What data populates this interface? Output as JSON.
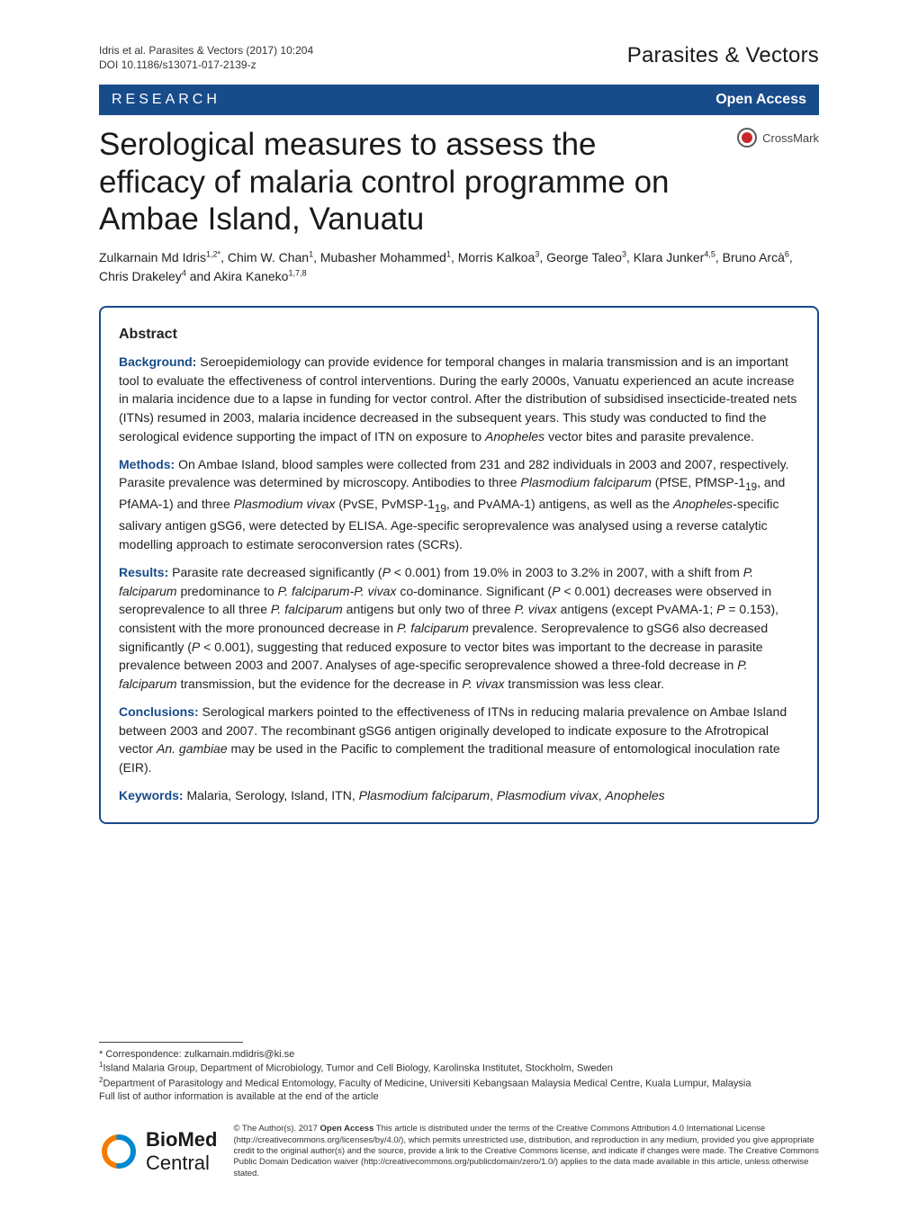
{
  "meta": {
    "citation": "Idris et al. Parasites & Vectors (2017) 10:204",
    "doi": "DOI 10.1186/s13071-017-2139-z",
    "journal": "Parasites & Vectors"
  },
  "ribbon": {
    "left": "RESEARCH",
    "right": "Open Access"
  },
  "title": "Serological measures to assess the efficacy of malaria control programme on Ambae Island, Vanuatu",
  "crossmark_label": "CrossMark",
  "authors_html": "Zulkarnain Md Idris<sup>1,2*</sup>, Chim W. Chan<sup>1</sup>, Mubasher Mohammed<sup>1</sup>, Morris Kalkoa<sup>3</sup>, George Taleo<sup>3</sup>, Klara Junker<sup>4,5</sup>, Bruno Arcà<sup>6</sup>, Chris Drakeley<sup>4</sup> and Akira Kaneko<sup>1,7,8</sup>",
  "abstract": {
    "heading": "Abstract",
    "labels": {
      "background": "Background:",
      "methods": "Methods:",
      "results": "Results:",
      "conclusions": "Conclusions:",
      "keywords": "Keywords:"
    },
    "background": " Seroepidemiology can provide evidence for temporal changes in malaria transmission and is an important tool to evaluate the effectiveness of control interventions. During the early 2000s, Vanuatu experienced an acute increase in malaria incidence due to a lapse in funding for vector control. After the distribution of subsidised insecticide-treated nets (ITNs) resumed in 2003, malaria incidence decreased in the subsequent years. This study was conducted to find the serological evidence supporting the impact of ITN on exposure to ",
    "background_tail_italic": "Anopheles",
    "background_tail": " vector bites and parasite prevalence.",
    "methods_html": " On Ambae Island, blood samples were collected from 231 and 282 individuals in 2003 and 2007, respectively. Parasite prevalence was determined by microscopy. Antibodies to three <span class=\"italic\">Plasmodium falciparum</span> (PfSE, PfMSP-1<sub>19</sub>, and PfAMA-1) and three <span class=\"italic\">Plasmodium vivax</span> (PvSE, PvMSP-1<sub>19</sub>, and PvAMA-1) antigens, as well as the <span class=\"italic\">Anopheles</span>-specific salivary antigen gSG6, were detected by ELISA. Age-specific seroprevalence was analysed using a reverse catalytic modelling approach to estimate seroconversion rates (SCRs).",
    "results_html": " Parasite rate decreased significantly (<span class=\"italic\">P</span> < 0.001) from 19.0% in 2003 to 3.2% in 2007, with a shift from <span class=\"italic\">P. falciparum</span> predominance to <span class=\"italic\">P. falciparum-P. vivax</span> co-dominance. Significant (<span class=\"italic\">P</span> < 0.001) decreases were observed in seroprevalence to all three <span class=\"italic\">P. falciparum</span> antigens but only two of three <span class=\"italic\">P. vivax</span> antigens (except PvAMA-1; <span class=\"italic\">P</span> = 0.153), consistent with the more pronounced decrease in <span class=\"italic\">P. falciparum</span> prevalence. Seroprevalence to gSG6 also decreased significantly (<span class=\"italic\">P</span> < 0.001), suggesting that reduced exposure to vector bites was important to the decrease in parasite prevalence between 2003 and 2007. Analyses of age-specific seroprevalence showed a three-fold decrease in <span class=\"italic\">P. falciparum</span> transmission, but the evidence for the decrease in <span class=\"italic\">P. vivax</span> transmission was less clear.",
    "conclusions_html": " Serological markers pointed to the effectiveness of ITNs in reducing malaria prevalence on Ambae Island between 2003 and 2007. The recombinant gSG6 antigen originally developed to indicate exposure to the Afrotropical vector <span class=\"italic\">An. gambiae</span> may be used in the Pacific to complement the traditional measure of entomological inoculation rate (EIR).",
    "keywords_html": " Malaria, Serology, Island, ITN, <span class=\"italic\">Plasmodium falciparum</span>, <span class=\"italic\">Plasmodium vivax</span>, <span class=\"italic\">Anopheles</span>"
  },
  "correspondence": {
    "line1": "* Correspondence: zulkarnain.mdidris@ki.se",
    "aff1_html": "<sup>1</sup>Island Malaria Group, Department of Microbiology, Tumor and Cell Biology, Karolinska Institutet, Stockholm, Sweden",
    "aff2_html": "<sup>2</sup>Department of Parasitology and Medical Entomology, Faculty of Medicine, Universiti Kebangsaan Malaysia Medical Centre, Kuala Lumpur, Malaysia",
    "full_list": "Full list of author information is available at the end of the article"
  },
  "license": {
    "brand_bold": "BioMed",
    "brand_light": " Central",
    "text_html": "© The Author(s). 2017 <span class=\"bold\">Open Access</span> This article is distributed under the terms of the Creative Commons Attribution 4.0 International License (http://creativecommons.org/licenses/by/4.0/), which permits unrestricted use, distribution, and reproduction in any medium, provided you give appropriate credit to the original author(s) and the source, provide a link to the Creative Commons license, and indicate if changes were made. The Creative Commons Public Domain Dedication waiver (http://creativecommons.org/publicdomain/zero/1.0/) applies to the data made available in this article, unless otherwise stated."
  },
  "colors": {
    "brand_blue": "#184b8a",
    "crossmark_red": "#c62828",
    "bmc_orange": "#f57c00",
    "bmc_blue": "#0288d1"
  }
}
